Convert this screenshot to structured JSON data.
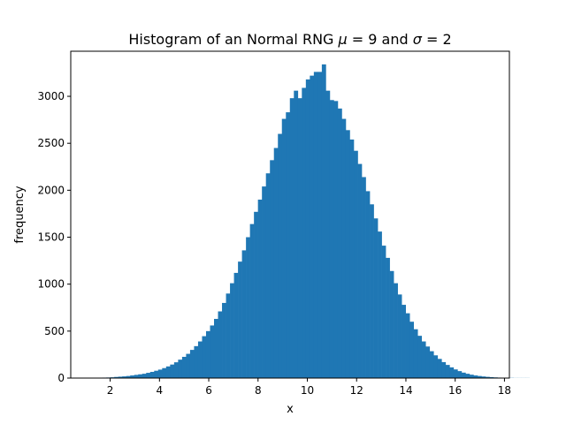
{
  "chart_data": {
    "type": "bar",
    "title_parts": {
      "pre": "Histogram of an Normal RNG ",
      "mu": "μ",
      "mid1": " = 9 and ",
      "sigma": "σ",
      "mid2": " = 2"
    },
    "xlabel": "x",
    "ylabel": "frequency",
    "xlim": [
      0.4,
      18.2
    ],
    "ylim": [
      0,
      3480
    ],
    "xticks": [
      2,
      4,
      6,
      8,
      10,
      12,
      14,
      16,
      18
    ],
    "yticks": [
      0,
      500,
      1000,
      1500,
      2000,
      2500,
      3000
    ],
    "bin_start": 1.03,
    "bin_width": 0.162,
    "counts": [
      2,
      2,
      3,
      4,
      5,
      6,
      8,
      12,
      15,
      18,
      22,
      28,
      34,
      40,
      46,
      56,
      66,
      78,
      90,
      106,
      124,
      144,
      168,
      196,
      226,
      258,
      300,
      340,
      390,
      446,
      500,
      560,
      630,
      710,
      800,
      900,
      1010,
      1120,
      1240,
      1360,
      1500,
      1640,
      1770,
      1900,
      2040,
      2180,
      2320,
      2450,
      2600,
      2760,
      2830,
      2980,
      3060,
      2980,
      3090,
      3180,
      3220,
      3260,
      3260,
      3340,
      3060,
      2960,
      2950,
      2870,
      2760,
      2640,
      2540,
      2420,
      2280,
      2140,
      1990,
      1850,
      1700,
      1560,
      1410,
      1280,
      1140,
      1010,
      890,
      780,
      690,
      600,
      520,
      450,
      390,
      336,
      286,
      242,
      204,
      170,
      140,
      114,
      92,
      74,
      58,
      46,
      36,
      28,
      22,
      17,
      13,
      10,
      7,
      5,
      4,
      3,
      2,
      1,
      1,
      1,
      1
    ]
  }
}
